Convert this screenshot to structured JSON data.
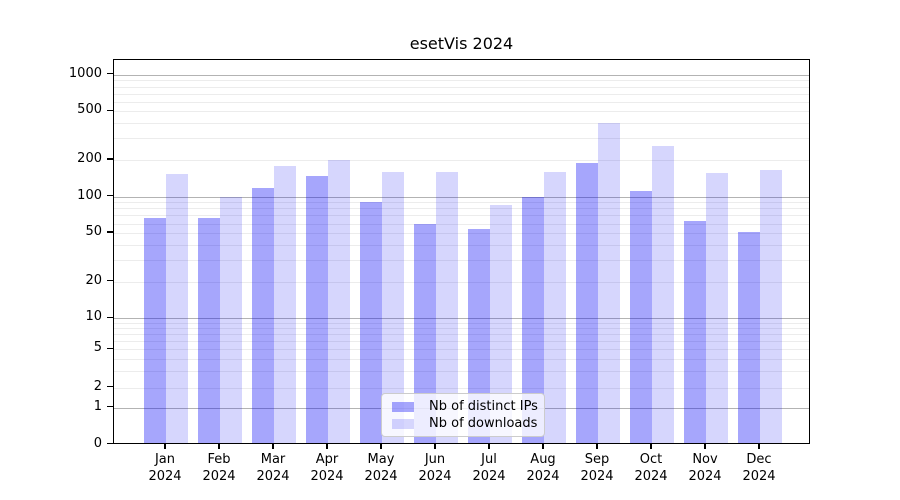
{
  "title": "esetVis 2024",
  "chart_data": {
    "type": "bar",
    "title": "esetVis 2024",
    "categories": [
      "Jan 2024",
      "Feb 2024",
      "Mar 2024",
      "Apr 2024",
      "May 2024",
      "Jun 2024",
      "Jul 2024",
      "Aug 2024",
      "Sep 2024",
      "Oct 2024",
      "Nov 2024",
      "Dec 2024"
    ],
    "series": [
      {
        "name": "Nb of distinct IPs",
        "color": "rgba(0,0,245,0.35)",
        "values": [
          66,
          67,
          118,
          146,
          90,
          60,
          54,
          100,
          188,
          111,
          63,
          51
        ]
      },
      {
        "name": "Nb of downloads",
        "color": "rgba(0,0,245,0.16)",
        "values": [
          154,
          100,
          178,
          198,
          158,
          158,
          85,
          158,
          404,
          261,
          157,
          166
        ]
      }
    ],
    "xlabel": "",
    "ylabel": "",
    "yscale": "symlog",
    "y_ticks": [
      0,
      1,
      2,
      5,
      10,
      20,
      50,
      100,
      200,
      500,
      1000
    ],
    "ylim": [
      0,
      1320
    ],
    "grid": {
      "major_values": [
        1,
        10,
        100,
        1000
      ],
      "minor_values": [
        2,
        3,
        4,
        5,
        6,
        7,
        8,
        9,
        20,
        30,
        40,
        50,
        60,
        70,
        80,
        90,
        200,
        300,
        400,
        500,
        600,
        700,
        800,
        900
      ]
    },
    "legend_position": "lower center"
  },
  "legend": {
    "items": [
      {
        "label": "Nb of distinct IPs",
        "color": "rgba(0,0,245,0.35)"
      },
      {
        "label": "Nb of downloads",
        "color": "rgba(0,0,245,0.16)"
      }
    ]
  },
  "colors": {
    "bar_distinct_ips": "rgba(0,0,245,0.35)",
    "bar_downloads": "rgba(0,0,245,0.16)",
    "major_grid": "#b3b3b3",
    "minor_grid": "#ececec",
    "axis": "#000000",
    "background": "#ffffff"
  }
}
